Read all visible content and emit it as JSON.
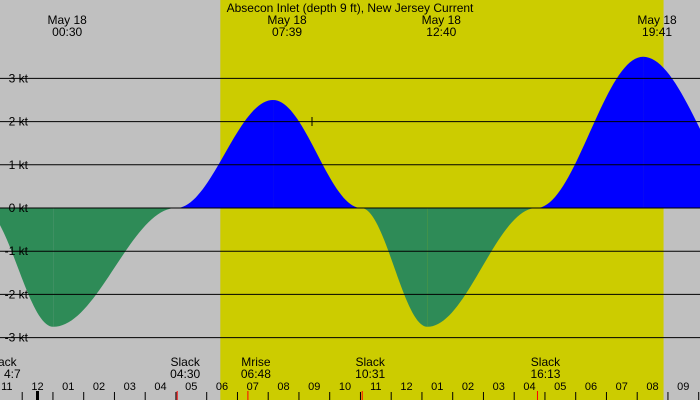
{
  "chart_data": {
    "type": "area",
    "title": "Absecon Inlet (depth 9 ft), New Jersey Current",
    "y_unit": "kt",
    "ylim": [
      -3.5,
      3.6
    ],
    "y_ticks": [
      {
        "value": 3,
        "label": "3 kt"
      },
      {
        "value": 2,
        "label": "2 kt"
      },
      {
        "value": 1,
        "label": "1 kt"
      },
      {
        "value": 0,
        "label": "0 kt"
      },
      {
        "value": -1,
        "label": "-1 kt"
      },
      {
        "value": -2,
        "label": "-2 kt"
      },
      {
        "value": -3,
        "label": "-3 kt"
      }
    ],
    "x_range_hours": [
      -13.167,
      33.3
    ],
    "hour_tick_labels": [
      "11",
      "12",
      "01",
      "02",
      "03",
      "04",
      "05",
      "06",
      "07",
      "08",
      "09",
      "10",
      "11",
      "12",
      "01",
      "02",
      "03",
      "04",
      "05",
      "06",
      "07",
      "08",
      "09"
    ],
    "hour_tick_start": -13,
    "extrema": [
      {
        "date": "May 18",
        "time": "00:30",
        "hour": 0.5,
        "speed": -2.75,
        "kind": "ebb"
      },
      {
        "date": "May 18",
        "time": "07:39",
        "hour": 7.65,
        "speed": 2.5,
        "kind": "flood"
      },
      {
        "date": "May 18",
        "time": "12:40",
        "hour": 12.667,
        "speed": -2.75,
        "kind": "ebb"
      },
      {
        "date": "May 18",
        "time": "19:41",
        "hour": 19.683,
        "speed": 3.5,
        "kind": "flood"
      }
    ],
    "slack_and_moon_events": [
      {
        "label": "Slack",
        "time": "4:7",
        "hour": -19.3,
        "partial": true,
        "partial_label": "ack",
        "partial_time": "4:7"
      },
      {
        "label": "Slack",
        "time": "04:30",
        "hour": 4.5
      },
      {
        "label": "Mrise",
        "time": "06:48",
        "hour": 6.8
      },
      {
        "label": "Slack",
        "time": "10:31",
        "hour": 10.517
      },
      {
        "label": "Slack",
        "time": "16:13",
        "hour": 16.217
      }
    ],
    "curve_points": [
      {
        "hour": -1.8,
        "speed": 0.0
      },
      {
        "hour": 0.5,
        "speed": -2.75
      },
      {
        "hour": 4.5,
        "speed": 0.0
      },
      {
        "hour": 7.65,
        "speed": 2.5
      },
      {
        "hour": 10.517,
        "speed": 0.0
      },
      {
        "hour": 12.667,
        "speed": -2.75
      },
      {
        "hour": 16.217,
        "speed": 0.0
      },
      {
        "hour": 19.683,
        "speed": 3.5
      },
      {
        "hour": 23.5,
        "speed": 0.0
      }
    ],
    "daylight": {
      "start_hour": 6.0,
      "end_hour": 20.35
    },
    "colors": {
      "background": "#c0c0c0",
      "daylight": "#cccc00",
      "flood": "#0000ff",
      "ebb": "#2e8b57",
      "grid": "#000000",
      "moon_tick": "#ff0000"
    },
    "grid": true
  }
}
